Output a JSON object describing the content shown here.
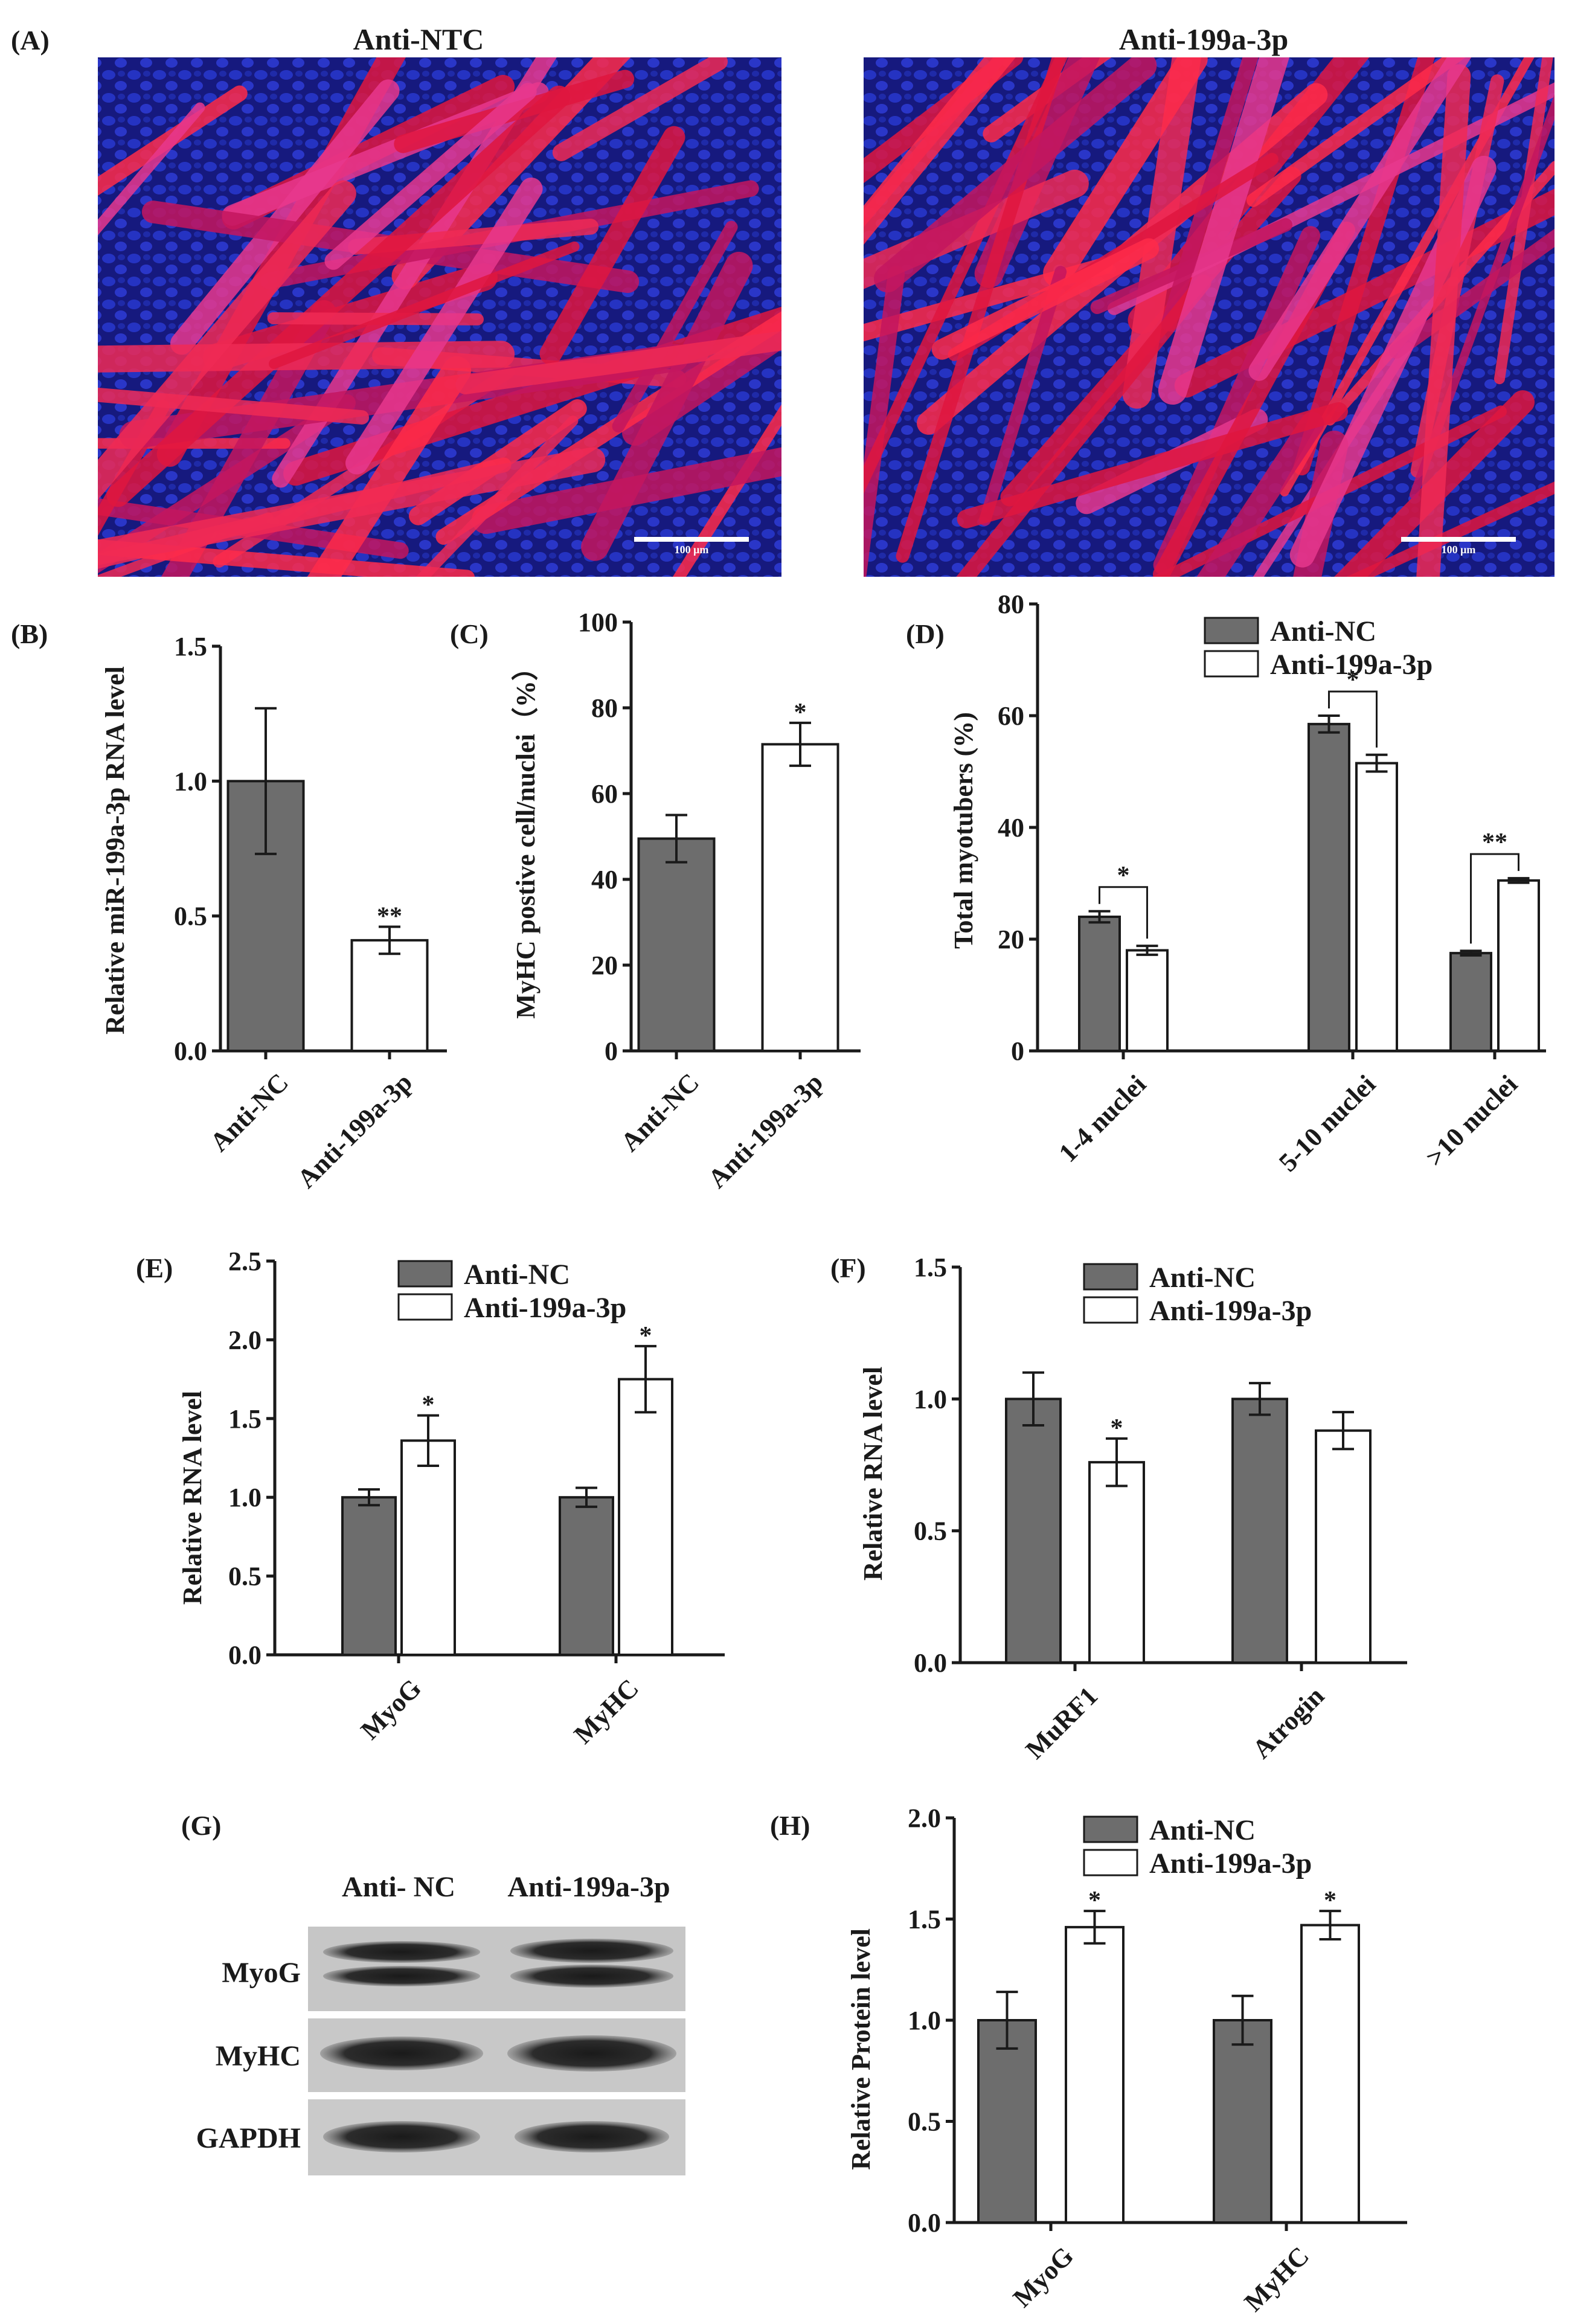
{
  "colors": {
    "anti_nc": "#6d6d6d",
    "anti_199a": "#ffffff",
    "axis": "#1a1a1a",
    "nucleus": "#1c28b4",
    "myotube": "#e8204a"
  },
  "panel_a": {
    "label": "(A)",
    "images": [
      {
        "title": "Anti-NTC",
        "scale_bar": "100 μm"
      },
      {
        "title": "Anti-199a-3p",
        "scale_bar": "100 μm"
      }
    ]
  },
  "chart_data": [
    {
      "id": "B",
      "type": "bar",
      "label": "(B)",
      "ylabel": "Relative miR-199a-3p RNA level",
      "ylim": [
        0,
        1.5
      ],
      "yticks": [
        "0.0",
        "0.5",
        "1.0",
        "1.5"
      ],
      "categories": [
        "Anti-NC",
        "Anti-199a-3p"
      ],
      "series": [
        {
          "name": "values",
          "values": [
            1.0,
            0.41
          ],
          "errors": [
            0.27,
            0.05
          ]
        }
      ],
      "annotations": [
        {
          "text": "**",
          "category": 1
        }
      ]
    },
    {
      "id": "C",
      "type": "bar",
      "label": "(C)",
      "ylabel": "MyHC postive cell/nuclei（%）",
      "ylim": [
        0,
        100
      ],
      "yticks": [
        "0",
        "20",
        "40",
        "60",
        "80",
        "100"
      ],
      "categories": [
        "Anti-NC",
        "Anti-199a-3p"
      ],
      "series": [
        {
          "name": "values",
          "values": [
            49.5,
            71.5
          ],
          "errors": [
            5.5,
            5.0
          ]
        }
      ],
      "annotations": [
        {
          "text": "*",
          "category": 1
        }
      ]
    },
    {
      "id": "D",
      "type": "bar",
      "label": "(D)",
      "ylabel": "Total myotubers (%)",
      "ylim": [
        0,
        80
      ],
      "yticks": [
        "0",
        "20",
        "40",
        "60",
        "80"
      ],
      "categories": [
        "1-4 nuclei",
        "5-10 nuclei",
        ">10 nuclei"
      ],
      "legend": [
        "Anti-NC",
        "Anti-199a-3p"
      ],
      "series": [
        {
          "name": "Anti-NC",
          "values": [
            24,
            58.5,
            17.5
          ],
          "errors": [
            1.0,
            1.5,
            0.4
          ]
        },
        {
          "name": "Anti-199a-3p",
          "values": [
            18,
            51.5,
            30.5
          ],
          "errors": [
            0.8,
            1.5,
            0.4
          ]
        }
      ],
      "annotations": [
        {
          "text": "*",
          "category": 0
        },
        {
          "text": "*",
          "category": 1
        },
        {
          "text": "**",
          "category": 2
        }
      ]
    },
    {
      "id": "E",
      "type": "bar",
      "label": "(E)",
      "ylabel": "Relative  RNA level",
      "ylim": [
        0,
        2.5
      ],
      "yticks": [
        "0.0",
        "0.5",
        "1.0",
        "1.5",
        "2.0",
        "2.5"
      ],
      "categories": [
        "MyoG",
        "MyHC"
      ],
      "legend": [
        "Anti-NC",
        "Anti-199a-3p"
      ],
      "series": [
        {
          "name": "Anti-NC",
          "values": [
            1.0,
            1.0
          ],
          "errors": [
            0.05,
            0.06
          ]
        },
        {
          "name": "Anti-199a-3p",
          "values": [
            1.36,
            1.75
          ],
          "errors": [
            0.16,
            0.21
          ]
        }
      ],
      "annotations": [
        {
          "text": "*",
          "category": 0
        },
        {
          "text": "*",
          "category": 1
        }
      ]
    },
    {
      "id": "F",
      "type": "bar",
      "label": "(F)",
      "ylabel": "Relative  RNA level",
      "ylim": [
        0,
        1.5
      ],
      "yticks": [
        "0.0",
        "0.5",
        "1.0",
        "1.5"
      ],
      "categories": [
        "MuRF1",
        "Atrogin"
      ],
      "legend": [
        "Anti-NC",
        "Anti-199a-3p"
      ],
      "series": [
        {
          "name": "Anti-NC",
          "values": [
            1.0,
            1.0
          ],
          "errors": [
            0.1,
            0.06
          ]
        },
        {
          "name": "Anti-199a-3p",
          "values": [
            0.76,
            0.88
          ],
          "errors": [
            0.09,
            0.07
          ]
        }
      ],
      "annotations": [
        {
          "text": "*",
          "category": 0
        }
      ]
    },
    {
      "id": "H",
      "type": "bar",
      "label": "(H)",
      "ylabel": "Relative  Protein level",
      "ylim": [
        0,
        2.0
      ],
      "yticks": [
        "0.0",
        "0.5",
        "1.0",
        "1.5",
        "2.0"
      ],
      "categories": [
        "MyoG",
        "MyHC"
      ],
      "legend": [
        "Anti-NC",
        "Anti-199a-3p"
      ],
      "series": [
        {
          "name": "Anti-NC",
          "values": [
            1.0,
            1.0
          ],
          "errors": [
            0.14,
            0.12
          ]
        },
        {
          "name": "Anti-199a-3p",
          "values": [
            1.46,
            1.47
          ],
          "errors": [
            0.08,
            0.07
          ]
        }
      ],
      "annotations": [
        {
          "text": "*",
          "category": 0
        },
        {
          "text": "*",
          "category": 1
        }
      ]
    }
  ],
  "panel_g": {
    "label": "(G)",
    "columns": [
      "Anti- NC",
      "Anti-199a-3p"
    ],
    "rows": [
      "MyoG",
      "MyHC",
      "GAPDH"
    ]
  }
}
